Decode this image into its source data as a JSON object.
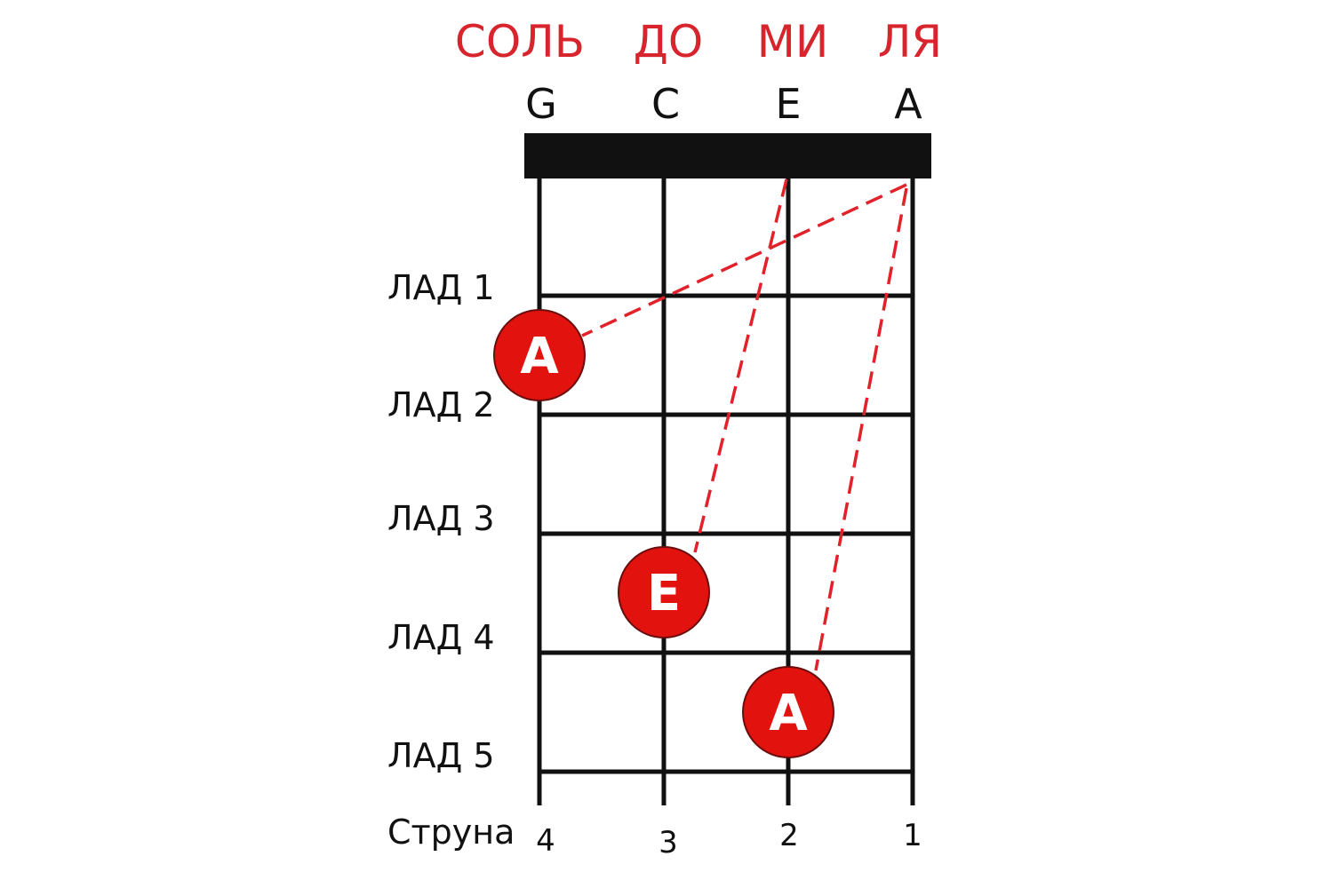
{
  "solfege": [
    "СОЛЬ",
    "ДО",
    "МИ",
    "ЛЯ"
  ],
  "notes": [
    "G",
    "C",
    "E",
    "A"
  ],
  "frets": [
    "ЛАД 1",
    "ЛАД 2",
    "ЛАД 3",
    "ЛАД 4",
    "ЛАД 5"
  ],
  "string_label": "Струна",
  "string_numbers": [
    "4",
    "3",
    "2",
    "1"
  ],
  "markers": [
    {
      "label": "A",
      "string": 4,
      "fret": 2
    },
    {
      "label": "E",
      "string": 3,
      "fret": 4
    },
    {
      "label": "A",
      "string": 2,
      "fret": 5
    }
  ],
  "colors": {
    "accent": "#d8242c",
    "marker": "#e2120f",
    "lines": "#111111"
  }
}
